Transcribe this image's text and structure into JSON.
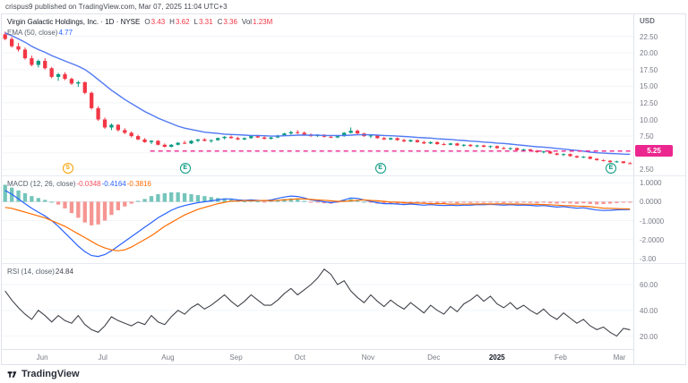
{
  "attribution": "crispus9 published on TradingView.com, Mar 07, 2025 11:04 UTC+3",
  "footer": {
    "brand": "TradingView"
  },
  "symbol": {
    "currency": "USD"
  },
  "legend": {
    "symbol_line": "Virgin Galactic Holdings, Inc. · 1D · NYSE",
    "o_label": "O",
    "o": "3.43",
    "h_label": "H",
    "h": "3.62",
    "l_label": "L",
    "l": "3.31",
    "c_label": "C",
    "c": "3.36",
    "vol_label": "Vol",
    "vol": "1.23M"
  },
  "ema": {
    "label": "EMA (50, close)",
    "value": "4.77"
  },
  "macd_legend": {
    "label": "MACD (12, 26, close)",
    "hist": "-0.0348",
    "macd": "-0.4164",
    "signal": "-0.3816"
  },
  "rsi_legend": {
    "label": "RSI (14, close)",
    "value": "24.84"
  },
  "price_line": {
    "label": "5.25",
    "level": 5.25,
    "start_frac": 0.235
  },
  "colors": {
    "up": "#089981",
    "down": "#f23645",
    "ema": "#5179f3",
    "macd_line": "#2962ff",
    "signal_line": "#ff6d00",
    "hist_pos": "#45b1a4",
    "hist_neg": "#f2726e",
    "rsi_line": "#40434b",
    "pink": "#ec268f",
    "grid": "#f3f5f9",
    "axis_text": "#787b86"
  },
  "axes": {
    "price": [
      {
        "t": "22.50",
        "v": 22.5
      },
      {
        "t": "20.00",
        "v": 20
      },
      {
        "t": "17.50",
        "v": 17.5
      },
      {
        "t": "15.00",
        "v": 15
      },
      {
        "t": "12.50",
        "v": 12.5
      },
      {
        "t": "10.00",
        "v": 10
      },
      {
        "t": "7.50",
        "v": 7.5
      },
      {
        "t": "2.50",
        "v": 2.5
      }
    ],
    "price_grid": [
      22.5,
      20,
      17.5,
      15,
      12.5,
      10,
      7.5,
      5,
      2.5
    ],
    "macd": [
      {
        "t": "1.0000",
        "v": 1
      },
      {
        "t": "0.0000",
        "v": 0
      },
      {
        "t": "-1.0000",
        "v": -1
      },
      {
        "t": "-2.0000",
        "v": -2
      },
      {
        "t": "-3.00",
        "v": -3
      }
    ],
    "rsi": [
      {
        "t": "60.00",
        "v": 60
      },
      {
        "t": "40.00",
        "v": 40
      },
      {
        "t": "20.00",
        "v": 20
      }
    ],
    "time": [
      {
        "t": "Jun",
        "f": 0.064
      },
      {
        "t": "Jul",
        "f": 0.16
      },
      {
        "t": "Aug",
        "f": 0.263
      },
      {
        "t": "Sep",
        "f": 0.371
      },
      {
        "t": "Oct",
        "f": 0.472
      },
      {
        "t": "Nov",
        "f": 0.58
      },
      {
        "t": "Dec",
        "f": 0.684
      },
      {
        "t": "2025",
        "f": 0.784,
        "bold": true
      },
      {
        "t": "Feb",
        "f": 0.885
      },
      {
        "t": "Mar",
        "f": 0.978
      }
    ]
  },
  "markers": [
    {
      "t": "S",
      "f": 0.103,
      "c": "#f59f00",
      "kind": "split"
    },
    {
      "t": "E",
      "f": 0.289,
      "c": "#089981",
      "kind": "earnings"
    },
    {
      "t": "E",
      "f": 0.598,
      "c": "#089981",
      "kind": "earnings"
    },
    {
      "t": "E",
      "f": 0.963,
      "c": "#089981",
      "kind": "earnings"
    }
  ],
  "chart_data": [
    {
      "type": "candlestick",
      "title": "Virgin Galactic Holdings, Inc. 1D NYSE",
      "ylabel": "USD",
      "ylim": [
        1.6,
        25.8
      ],
      "x_months": [
        "Jun",
        "Jul",
        "Aug",
        "Sep",
        "Oct",
        "Nov",
        "Dec",
        "2025",
        "Feb",
        "Mar"
      ],
      "horizontal_line": 5.25,
      "last_ohlc": {
        "o": 3.43,
        "h": 3.62,
        "l": 3.31,
        "c": 3.36,
        "vol": "1.23M"
      },
      "candles": [
        [
          22.8,
          23.2,
          21.9,
          22.1
        ],
        [
          22.1,
          22.4,
          20.8,
          21.0
        ],
        [
          21.0,
          21.5,
          20.2,
          20.5
        ],
        [
          20.5,
          20.8,
          19.0,
          19.2
        ],
        [
          19.2,
          19.6,
          18.0,
          18.2
        ],
        [
          18.2,
          19.0,
          17.8,
          18.8
        ],
        [
          18.8,
          19.2,
          17.5,
          17.7
        ],
        [
          17.7,
          17.9,
          16.2,
          16.4
        ],
        [
          16.4,
          17.0,
          15.8,
          16.8
        ],
        [
          16.8,
          17.1,
          15.9,
          16.1
        ],
        [
          16.1,
          16.3,
          15.2,
          15.4
        ],
        [
          15.4,
          15.8,
          14.9,
          15.6
        ],
        [
          15.6,
          15.7,
          13.8,
          14.0
        ],
        [
          14.0,
          14.2,
          11.5,
          11.7
        ],
        [
          11.7,
          12.0,
          9.8,
          10.0
        ],
        [
          10.0,
          10.3,
          8.6,
          8.8
        ],
        [
          8.8,
          9.4,
          8.4,
          9.2
        ],
        [
          9.2,
          9.3,
          8.2,
          8.4
        ],
        [
          8.4,
          8.7,
          7.8,
          8.0
        ],
        [
          8.0,
          8.2,
          7.3,
          7.5
        ],
        [
          7.5,
          7.7,
          6.9,
          7.0
        ],
        [
          7.0,
          7.2,
          6.5,
          6.6
        ],
        [
          6.6,
          6.9,
          6.3,
          6.8
        ],
        [
          6.8,
          6.9,
          6.1,
          6.2
        ],
        [
          6.2,
          6.4,
          5.8,
          5.9
        ],
        [
          5.9,
          6.3,
          5.8,
          6.2
        ],
        [
          6.2,
          6.6,
          6.1,
          6.5
        ],
        [
          6.5,
          6.8,
          6.3,
          6.4
        ],
        [
          6.4,
          6.9,
          6.3,
          6.8
        ],
        [
          6.8,
          7.1,
          6.6,
          7.0
        ],
        [
          7.0,
          7.2,
          6.7,
          6.8
        ],
        [
          6.8,
          7.0,
          6.5,
          6.9
        ],
        [
          6.9,
          7.3,
          6.8,
          7.2
        ],
        [
          7.2,
          7.5,
          7.0,
          7.4
        ],
        [
          7.4,
          7.6,
          7.1,
          7.2
        ],
        [
          7.2,
          7.4,
          6.9,
          7.0
        ],
        [
          7.0,
          7.3,
          6.9,
          7.2
        ],
        [
          7.2,
          7.6,
          7.1,
          7.5
        ],
        [
          7.5,
          7.7,
          7.2,
          7.3
        ],
        [
          7.3,
          7.5,
          7.0,
          7.1
        ],
        [
          7.1,
          7.4,
          7.0,
          7.3
        ],
        [
          7.3,
          7.7,
          7.2,
          7.6
        ],
        [
          7.6,
          8.0,
          7.5,
          7.9
        ],
        [
          7.9,
          8.3,
          7.7,
          8.1
        ],
        [
          8.1,
          8.4,
          7.8,
          8.0
        ],
        [
          8.0,
          8.2,
          7.6,
          7.7
        ],
        [
          7.7,
          7.9,
          7.4,
          7.5
        ],
        [
          7.5,
          7.8,
          7.4,
          7.7
        ],
        [
          7.7,
          7.8,
          7.3,
          7.4
        ],
        [
          7.4,
          7.6,
          7.2,
          7.3
        ],
        [
          7.3,
          7.6,
          7.2,
          7.5
        ],
        [
          7.5,
          8.1,
          7.4,
          8.0
        ],
        [
          8.0,
          8.8,
          7.9,
          8.3
        ],
        [
          8.3,
          8.5,
          7.8,
          7.9
        ],
        [
          7.9,
          8.0,
          7.4,
          7.5
        ],
        [
          7.5,
          7.7,
          7.2,
          7.6
        ],
        [
          7.6,
          7.7,
          7.1,
          7.2
        ],
        [
          7.2,
          7.4,
          6.9,
          7.0
        ],
        [
          7.0,
          7.3,
          6.9,
          7.2
        ],
        [
          7.2,
          7.3,
          6.8,
          6.9
        ],
        [
          6.9,
          7.1,
          6.6,
          6.7
        ],
        [
          6.7,
          7.0,
          6.6,
          6.9
        ],
        [
          6.9,
          7.0,
          6.5,
          6.6
        ],
        [
          6.6,
          6.8,
          6.3,
          6.4
        ],
        [
          6.4,
          6.7,
          6.3,
          6.6
        ],
        [
          6.6,
          6.7,
          6.2,
          6.3
        ],
        [
          6.3,
          6.5,
          6.1,
          6.2
        ],
        [
          6.2,
          6.5,
          6.1,
          6.4
        ],
        [
          6.4,
          6.5,
          6.0,
          6.1
        ],
        [
          6.1,
          6.3,
          5.9,
          6.2
        ],
        [
          6.2,
          6.3,
          5.9,
          6.0
        ],
        [
          6.0,
          6.2,
          5.8,
          6.1
        ],
        [
          6.1,
          6.2,
          5.8,
          5.9
        ],
        [
          5.9,
          6.1,
          5.7,
          6.0
        ],
        [
          6.0,
          6.1,
          5.6,
          5.7
        ],
        [
          5.7,
          5.9,
          5.5,
          5.6
        ],
        [
          5.6,
          5.8,
          5.4,
          5.7
        ],
        [
          5.7,
          5.8,
          5.3,
          5.4
        ],
        [
          5.4,
          5.6,
          5.2,
          5.5
        ],
        [
          5.5,
          5.6,
          5.2,
          5.3
        ],
        [
          5.3,
          5.4,
          5.0,
          5.1
        ],
        [
          5.1,
          5.3,
          4.9,
          5.2
        ],
        [
          5.2,
          5.3,
          4.8,
          4.9
        ],
        [
          4.9,
          5.0,
          4.6,
          4.7
        ],
        [
          4.7,
          4.9,
          4.5,
          4.8
        ],
        [
          4.8,
          4.9,
          4.4,
          4.5
        ],
        [
          4.5,
          4.6,
          4.2,
          4.3
        ],
        [
          4.3,
          4.5,
          4.2,
          4.4
        ],
        [
          4.4,
          4.5,
          4.0,
          4.1
        ],
        [
          4.1,
          4.2,
          3.8,
          3.9
        ],
        [
          3.9,
          4.0,
          3.7,
          3.8
        ],
        [
          3.8,
          3.9,
          3.5,
          3.6
        ],
        [
          3.6,
          3.8,
          3.5,
          3.7
        ],
        [
          3.7,
          3.75,
          3.4,
          3.45
        ],
        [
          3.43,
          3.62,
          3.31,
          3.36
        ]
      ],
      "ema50": [
        23.0,
        22.6,
        22.1,
        21.6,
        21.0,
        20.5,
        20.1,
        19.6,
        19.2,
        18.8,
        18.4,
        18.0,
        17.5,
        16.8,
        16.0,
        15.2,
        14.4,
        13.7,
        13.0,
        12.4,
        11.8,
        11.2,
        10.7,
        10.2,
        9.8,
        9.4,
        9.0,
        8.7,
        8.5,
        8.3,
        8.1,
        8.0,
        7.9,
        7.8,
        7.75,
        7.7,
        7.65,
        7.6,
        7.6,
        7.55,
        7.5,
        7.5,
        7.55,
        7.6,
        7.65,
        7.65,
        7.65,
        7.65,
        7.6,
        7.6,
        7.6,
        7.6,
        7.65,
        7.7,
        7.7,
        7.7,
        7.65,
        7.6,
        7.55,
        7.5,
        7.45,
        7.4,
        7.3,
        7.25,
        7.2,
        7.1,
        7.05,
        7.0,
        6.9,
        6.85,
        6.75,
        6.7,
        6.6,
        6.55,
        6.45,
        6.4,
        6.3,
        6.2,
        6.1,
        6.0,
        5.9,
        5.85,
        5.75,
        5.65,
        5.55,
        5.45,
        5.35,
        5.25,
        5.1,
        5.0,
        4.95,
        4.9,
        4.85,
        4.8,
        4.77
      ]
    },
    {
      "type": "bar",
      "title": "MACD (12, 26, close)",
      "ylim": [
        -3.25,
        1.35
      ],
      "histogram": [
        0.9,
        0.75,
        0.6,
        0.45,
        0.3,
        0.2,
        0.1,
        0.0,
        -0.15,
        -0.35,
        -0.6,
        -0.85,
        -1.1,
        -1.25,
        -1.2,
        -1.0,
        -0.7,
        -0.45,
        -0.25,
        -0.1,
        0.05,
        0.15,
        0.3,
        0.4,
        0.45,
        0.5,
        0.5,
        0.45,
        0.4,
        0.35,
        0.3,
        0.25,
        0.2,
        0.18,
        0.12,
        0.06,
        0.02,
        0.05,
        0.02,
        -0.02,
        0.05,
        0.1,
        0.15,
        0.18,
        0.12,
        0.05,
        -0.02,
        -0.05,
        -0.08,
        -0.1,
        -0.02,
        0.08,
        0.15,
        0.1,
        0.0,
        -0.05,
        -0.1,
        -0.12,
        -0.08,
        -0.1,
        -0.1,
        -0.05,
        -0.08,
        -0.1,
        -0.05,
        -0.08,
        -0.1,
        -0.05,
        -0.08,
        -0.05,
        -0.06,
        -0.03,
        -0.05,
        -0.02,
        -0.05,
        -0.07,
        -0.04,
        -0.06,
        -0.04,
        -0.06,
        -0.08,
        -0.05,
        -0.08,
        -0.1,
        -0.06,
        -0.09,
        -0.11,
        -0.08,
        -0.12,
        -0.14,
        -0.12,
        -0.1,
        -0.07,
        -0.05,
        -0.0348
      ],
      "macd": [
        0.6,
        0.4,
        0.15,
        -0.1,
        -0.35,
        -0.55,
        -0.75,
        -1.0,
        -1.3,
        -1.65,
        -2.0,
        -2.35,
        -2.65,
        -2.85,
        -2.9,
        -2.8,
        -2.6,
        -2.35,
        -2.1,
        -1.85,
        -1.6,
        -1.35,
        -1.1,
        -0.85,
        -0.65,
        -0.45,
        -0.3,
        -0.2,
        -0.12,
        -0.05,
        0.0,
        0.05,
        0.1,
        0.15,
        0.15,
        0.1,
        0.08,
        0.1,
        0.08,
        0.05,
        0.1,
        0.18,
        0.25,
        0.3,
        0.28,
        0.2,
        0.1,
        0.05,
        0.0,
        -0.05,
        0.0,
        0.1,
        0.2,
        0.18,
        0.1,
        0.02,
        -0.05,
        -0.1,
        -0.1,
        -0.12,
        -0.15,
        -0.12,
        -0.15,
        -0.18,
        -0.15,
        -0.18,
        -0.2,
        -0.18,
        -0.2,
        -0.18,
        -0.18,
        -0.15,
        -0.16,
        -0.14,
        -0.16,
        -0.18,
        -0.16,
        -0.18,
        -0.17,
        -0.19,
        -0.22,
        -0.2,
        -0.24,
        -0.28,
        -0.26,
        -0.3,
        -0.34,
        -0.32,
        -0.38,
        -0.44,
        -0.46,
        -0.45,
        -0.43,
        -0.42,
        -0.4164
      ],
      "signal": [
        -0.3,
        -0.35,
        -0.45,
        -0.55,
        -0.65,
        -0.75,
        -0.85,
        -1.0,
        -1.15,
        -1.3,
        -1.5,
        -1.7,
        -1.9,
        -2.1,
        -2.3,
        -2.45,
        -2.55,
        -2.6,
        -2.55,
        -2.4,
        -2.2,
        -2.0,
        -1.8,
        -1.55,
        -1.3,
        -1.1,
        -0.9,
        -0.7,
        -0.55,
        -0.4,
        -0.3,
        -0.2,
        -0.1,
        -0.03,
        0.03,
        0.04,
        0.06,
        0.05,
        0.06,
        0.07,
        0.05,
        0.08,
        0.1,
        0.12,
        0.16,
        0.15,
        0.12,
        0.1,
        0.08,
        0.05,
        0.02,
        0.02,
        0.05,
        0.08,
        0.1,
        0.07,
        0.05,
        0.02,
        -0.02,
        -0.02,
        -0.05,
        -0.07,
        -0.07,
        -0.08,
        -0.1,
        -0.1,
        -0.1,
        -0.13,
        -0.12,
        -0.13,
        -0.12,
        -0.12,
        -0.11,
        -0.12,
        -0.11,
        -0.11,
        -0.12,
        -0.12,
        -0.13,
        -0.13,
        -0.14,
        -0.15,
        -0.16,
        -0.18,
        -0.2,
        -0.21,
        -0.23,
        -0.24,
        -0.26,
        -0.3,
        -0.34,
        -0.35,
        -0.36,
        -0.37,
        -0.3816
      ]
    },
    {
      "type": "line",
      "title": "RSI (14, close)",
      "ylim": [
        10,
        76
      ],
      "levels": [
        60,
        40,
        20
      ],
      "values": [
        55,
        48,
        42,
        37,
        33,
        40,
        36,
        31,
        36,
        32,
        30,
        36,
        29,
        25,
        23,
        28,
        35,
        32,
        30,
        28,
        31,
        29,
        36,
        31,
        29,
        35,
        40,
        37,
        42,
        45,
        41,
        44,
        48,
        52,
        47,
        43,
        47,
        52,
        48,
        44,
        44,
        48,
        53,
        57,
        52,
        56,
        60,
        65,
        72,
        68,
        60,
        63,
        55,
        50,
        46,
        52,
        47,
        43,
        48,
        44,
        41,
        46,
        42,
        38,
        44,
        40,
        37,
        43,
        39,
        45,
        48,
        52,
        47,
        51,
        45,
        42,
        46,
        41,
        44,
        40,
        37,
        41,
        36,
        33,
        38,
        34,
        30,
        33,
        28,
        25,
        27,
        23,
        20,
        26,
        24.84
      ]
    }
  ]
}
